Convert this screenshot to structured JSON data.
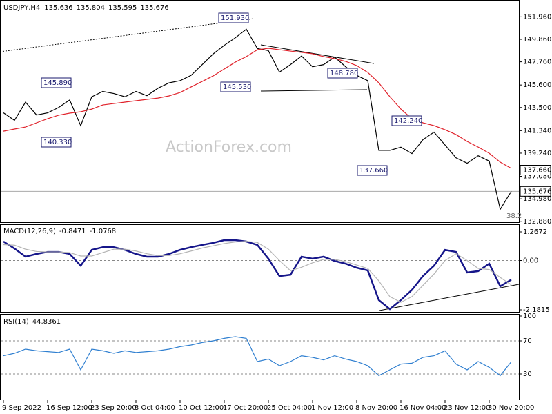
{
  "chart_data": [
    {
      "type": "line",
      "title": "USDJPY,H4",
      "ohlc": [
        135.636,
        135.804,
        135.595,
        135.676
      ],
      "watermark": "ActionForex.com",
      "categories": [
        "9 Sep 2022",
        null,
        null,
        null,
        "16 Sep 12:00",
        null,
        null,
        null,
        "23 Sep 20:00",
        null,
        null,
        null,
        "3 Oct 04:00",
        null,
        null,
        null,
        "10 Oct 12:00",
        null,
        null,
        null,
        "17 Oct 20:00",
        null,
        null,
        null,
        "25 Oct 04:00",
        null,
        null,
        null,
        "1 Nov 12:00",
        null,
        null,
        null,
        "8 Nov 20:00",
        null,
        null,
        null,
        "16 Nov 04:00",
        null,
        null,
        null,
        "23 Nov 12:00",
        null,
        null,
        null,
        "30 Nov 20:00",
        null,
        null
      ],
      "series": [
        {
          "name": "USDJPY",
          "color": "#000000",
          "values": [
            143.0,
            142.3,
            144.0,
            142.8,
            143.0,
            143.5,
            144.2,
            141.8,
            144.5,
            145.0,
            144.8,
            144.5,
            145.0,
            144.6,
            145.3,
            145.8,
            146.0,
            146.5,
            147.5,
            148.5,
            149.3,
            150.0,
            150.8,
            149.0,
            148.8,
            146.8,
            147.5,
            148.3,
            147.3,
            147.5,
            148.2,
            147.3,
            146.5,
            146.0,
            139.5,
            139.5,
            139.8,
            139.2,
            140.5,
            141.2,
            140.0,
            138.8,
            138.3,
            139.0,
            138.5,
            134.0,
            135.676
          ]
        },
        {
          "name": "MA",
          "color": "#e0222b",
          "values": [
            141.29,
            141.49,
            141.68,
            142.07,
            142.45,
            142.78,
            142.97,
            143.1,
            143.35,
            143.74,
            143.87,
            144.0,
            144.13,
            144.26,
            144.38,
            144.58,
            144.9,
            145.42,
            145.93,
            146.45,
            147.09,
            147.73,
            148.25,
            148.89,
            149.02,
            148.89,
            148.76,
            148.64,
            148.51,
            148.25,
            148.06,
            147.8,
            147.41,
            146.77,
            145.8,
            144.51,
            143.35,
            142.45,
            142.07,
            141.81,
            141.42,
            140.97,
            140.33,
            139.81,
            139.23,
            138.4,
            137.82
          ]
        }
      ],
      "ylim": [
        132.8,
        153.4
      ],
      "yticks": [
        {
          "value": 151.96,
          "label": "151.960"
        },
        {
          "value": 149.86,
          "label": "149.860"
        },
        {
          "value": 147.76,
          "label": "147.760"
        },
        {
          "value": 145.6,
          "label": "145.600"
        },
        {
          "value": 143.5,
          "label": "143.500"
        },
        {
          "value": 141.34,
          "label": "141.340"
        },
        {
          "value": 139.24,
          "label": "139.240"
        },
        {
          "value": 137.08,
          "label": "137.080"
        },
        {
          "value": 134.98,
          "label": "134.980"
        },
        {
          "value": 132.88,
          "label": "132.880"
        }
      ],
      "grid": false,
      "levels": [
        {
          "value": 137.66,
          "label": "137.660",
          "style": "dashed"
        },
        {
          "value": 135.676,
          "label": "135.676",
          "style": "solid"
        }
      ],
      "annotations": [
        "151.930",
        "145.890",
        "140.330",
        "145.530",
        "148.780",
        "142.240",
        "137.660"
      ],
      "fib_label": "38.2"
    },
    {
      "type": "line",
      "title": "MACD(12,26,9)",
      "header_values": [
        -0.8471,
        -1.0768
      ],
      "series": [
        {
          "name": "MACD",
          "color": "#16168a",
          "values": [
            0.84,
            0.53,
            0.17,
            0.29,
            0.38,
            0.38,
            0.29,
            -0.23,
            0.47,
            0.59,
            0.59,
            0.47,
            0.29,
            0.17,
            0.17,
            0.29,
            0.47,
            0.59,
            0.69,
            0.78,
            0.9,
            0.9,
            0.84,
            0.69,
            0.08,
            -0.69,
            -0.63,
            0.17,
            0.08,
            0.17,
            -0.02,
            -0.14,
            -0.32,
            -0.44,
            -1.75,
            -2.15,
            -1.75,
            -1.3,
            -0.69,
            -0.23,
            0.47,
            0.38,
            -0.53,
            -0.47,
            -0.14,
            -1.14,
            -0.8471
          ]
        },
        {
          "name": "Signal",
          "color": "#b4b4b4",
          "values": [
            0.7,
            0.68,
            0.5,
            0.4,
            0.38,
            0.38,
            0.35,
            0.2,
            0.2,
            0.35,
            0.5,
            0.5,
            0.42,
            0.3,
            0.22,
            0.22,
            0.3,
            0.42,
            0.55,
            0.65,
            0.75,
            0.82,
            0.85,
            0.8,
            0.5,
            0.0,
            -0.45,
            -0.3,
            -0.1,
            0.05,
            0.05,
            -0.05,
            -0.2,
            -0.35,
            -0.9,
            -1.6,
            -1.85,
            -1.6,
            -1.1,
            -0.6,
            0.0,
            0.3,
            0.0,
            -0.35,
            -0.4,
            -0.75,
            -1.0768
          ]
        }
      ],
      "ylim": [
        -2.1815,
        1.2672
      ],
      "yticks": [
        1.2672,
        {
          "value": 0,
          "label": "0.00"
        },
        -2.1815
      ],
      "grid": true
    },
    {
      "type": "line",
      "title": "RSI(14)",
      "header_values": [
        44.8361
      ],
      "series": [
        {
          "name": "RSI",
          "color": "#2f7fd0",
          "values": [
            52,
            55,
            60,
            58,
            57,
            56,
            60,
            35,
            60,
            58,
            55,
            58,
            56,
            57,
            58,
            60,
            63,
            65,
            68,
            70,
            73,
            75,
            73,
            45,
            48,
            40,
            45,
            52,
            50,
            47,
            52,
            48,
            45,
            40,
            28,
            35,
            42,
            43,
            50,
            52,
            58,
            42,
            35,
            45,
            38,
            28,
            44.8361
          ]
        }
      ],
      "ylim": [
        0,
        100
      ],
      "yticks": [
        100,
        70,
        30
      ],
      "grid": true
    }
  ]
}
